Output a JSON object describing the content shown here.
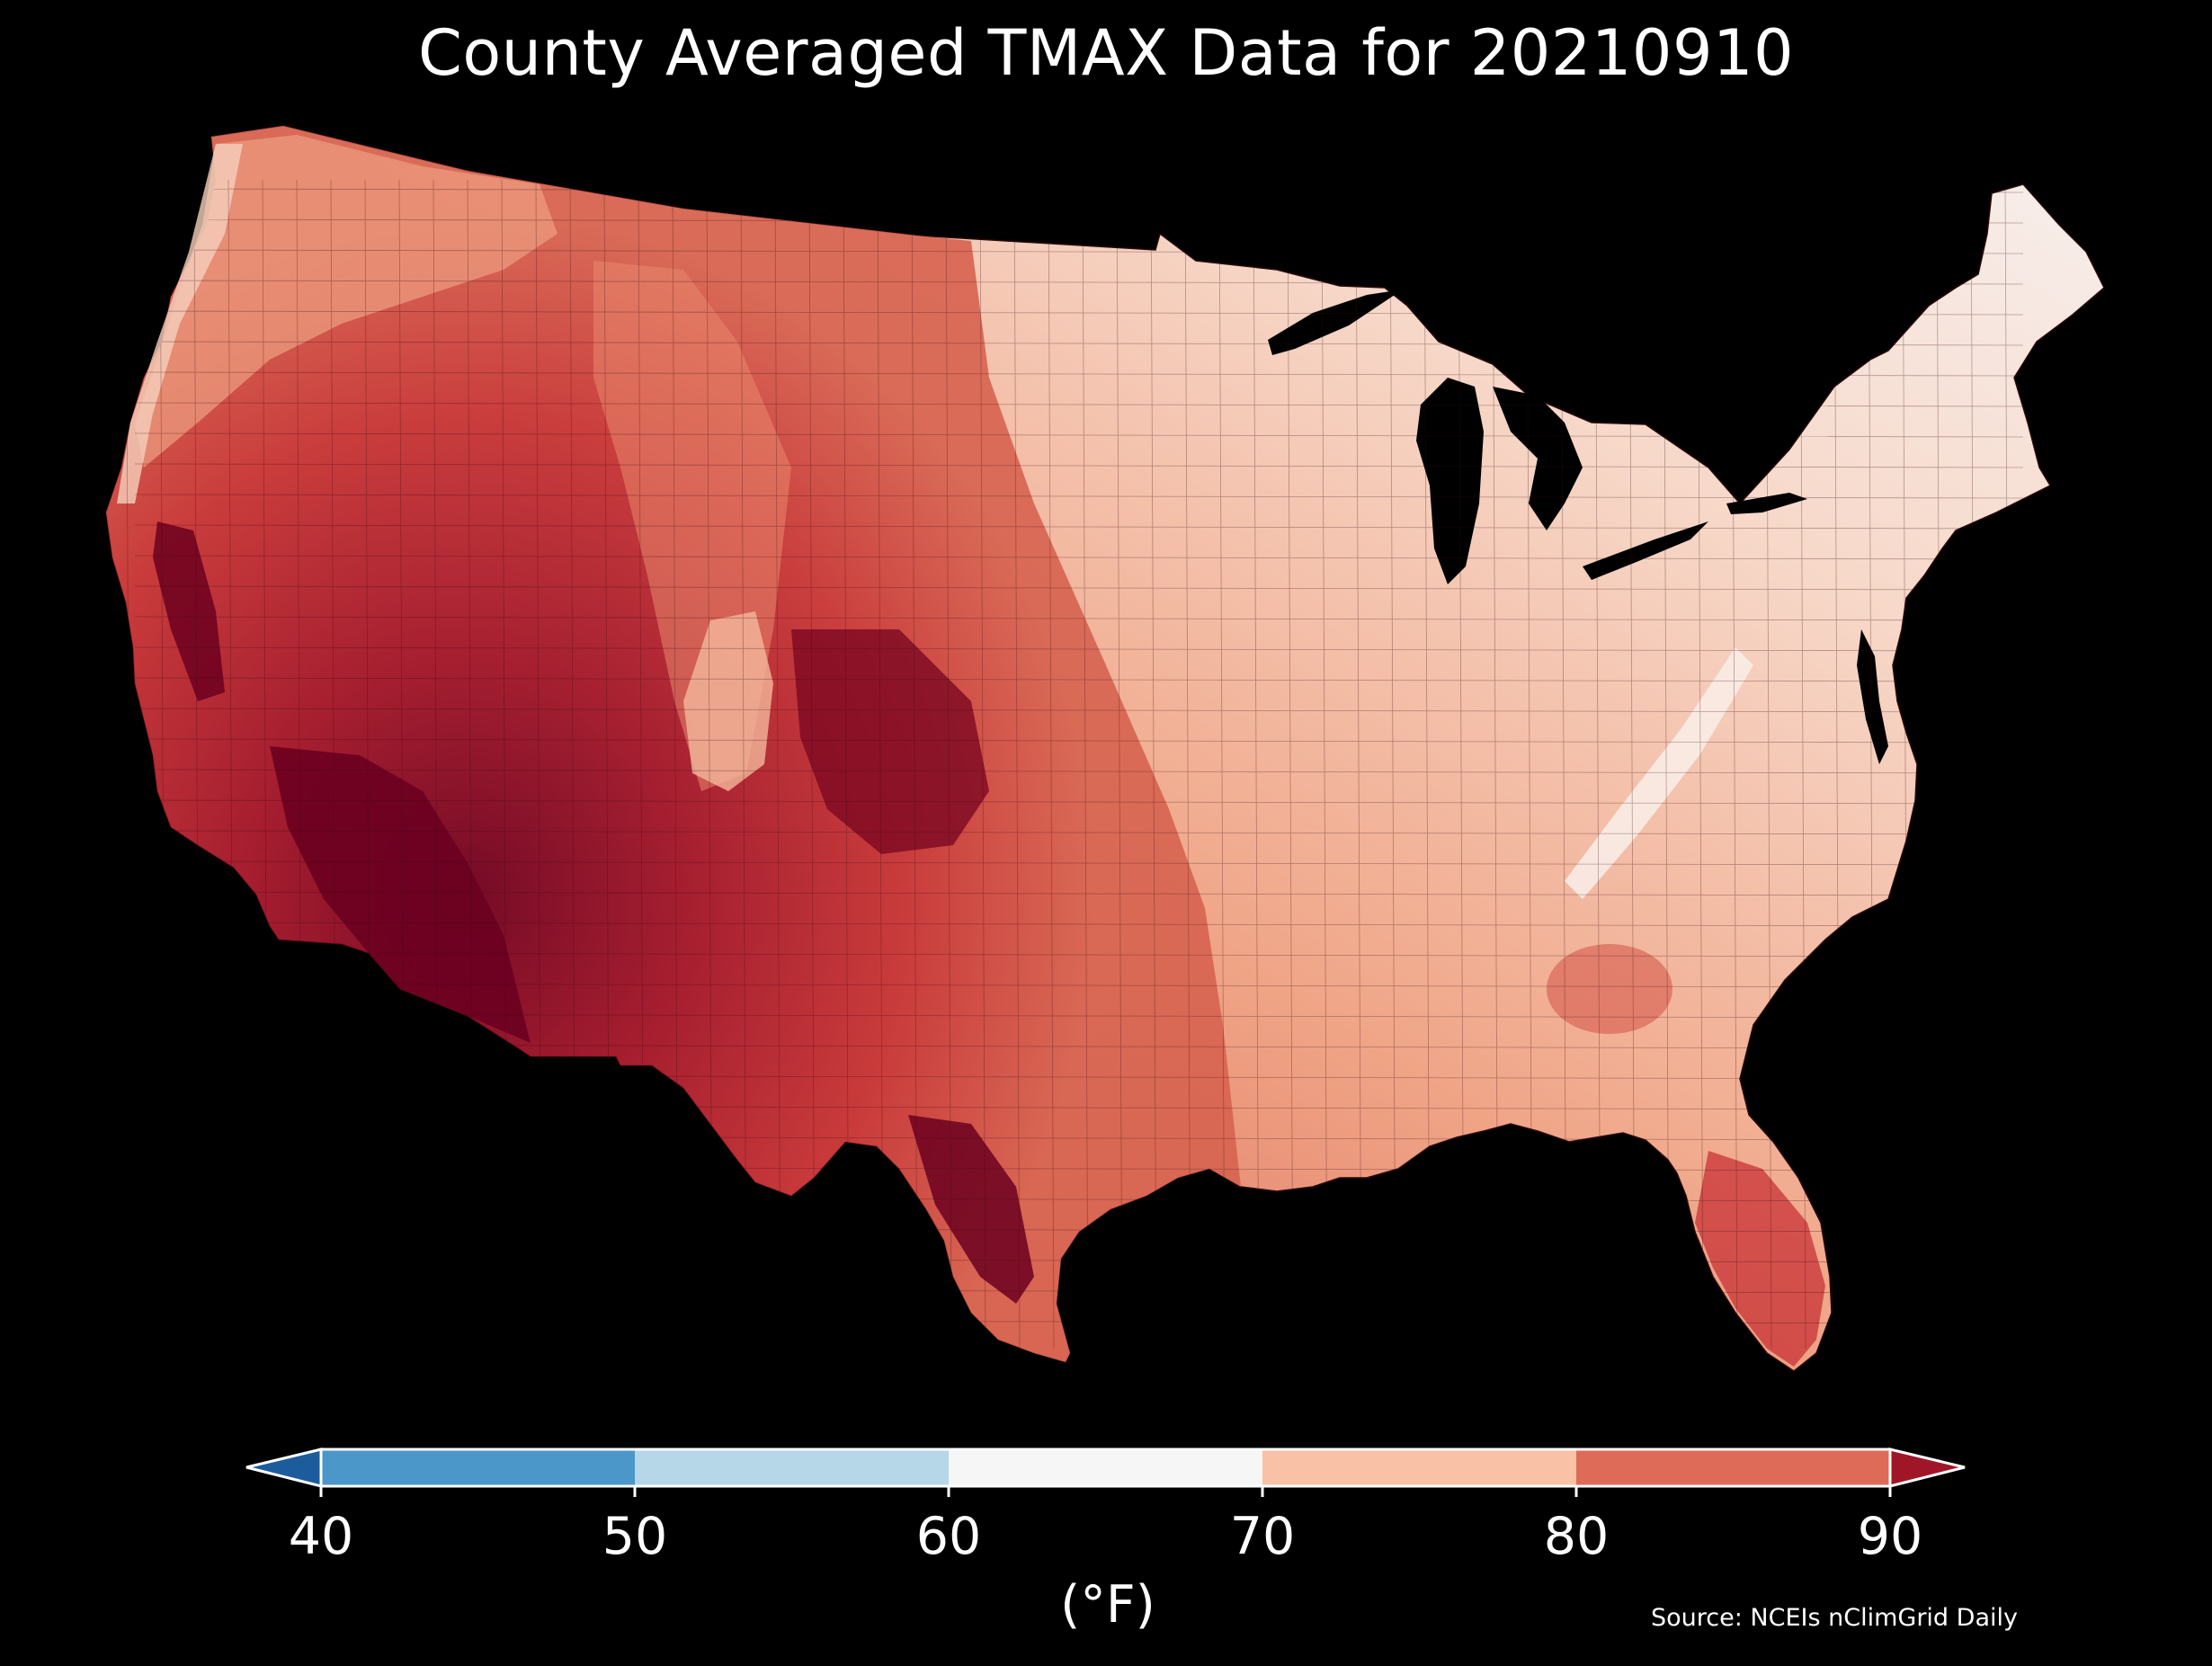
{
  "title": "County Averaged TMAX Data for 20210910",
  "colorbar": {
    "ticks": [
      "40",
      "50",
      "60",
      "70",
      "80",
      "90"
    ],
    "unit": "(°F)",
    "bins": [
      {
        "from": 40,
        "to": 50,
        "color": "#4b97c9"
      },
      {
        "from": 50,
        "to": 60,
        "color": "#b6d7e8"
      },
      {
        "from": 60,
        "to": 70,
        "color": "#f6f6f6"
      },
      {
        "from": 70,
        "to": 80,
        "color": "#f9c2a6"
      },
      {
        "from": 80,
        "to": 90,
        "color": "#de6b58"
      }
    ],
    "under_color": "#1d5c9c",
    "over_color": "#a01628"
  },
  "source": "Source: NCEIs nClimGrid Daily",
  "colors": {
    "background": "#000000",
    "cool_northeast": "#f5ebe6",
    "warm_plains": "#c83235",
    "hot_southwest": "#6c0020"
  }
}
